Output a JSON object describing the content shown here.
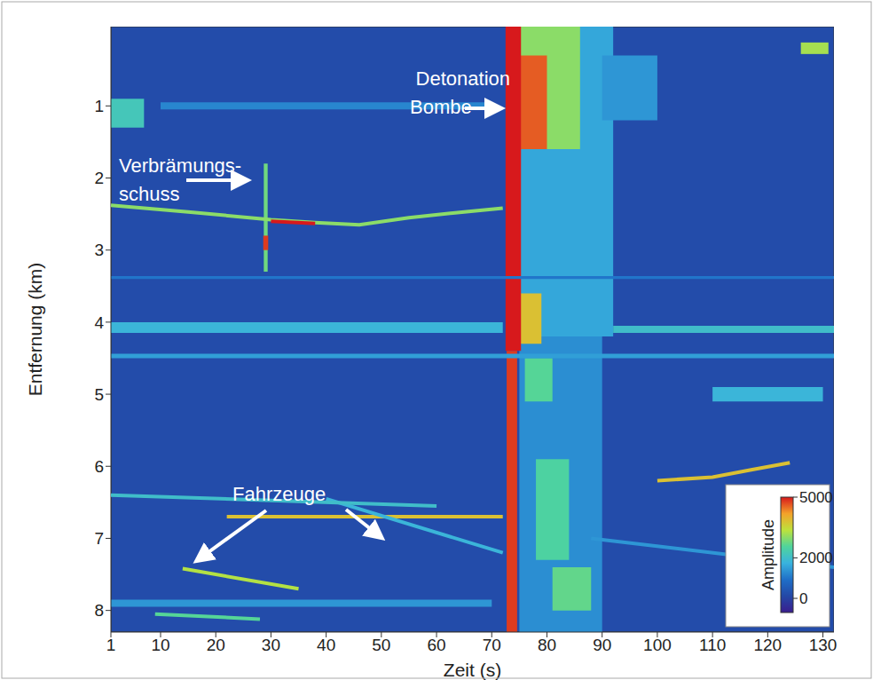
{
  "chart_data": {
    "type": "heatmap",
    "xlabel": "Zeit (s)",
    "ylabel": "Entfernung (km)",
    "xlim": [
      1,
      132
    ],
    "xticks": [
      1,
      10,
      20,
      30,
      40,
      50,
      60,
      70,
      80,
      90,
      100,
      110,
      120,
      130
    ],
    "ylim": [
      -0.1,
      8.3
    ],
    "yticks": [
      1,
      2,
      3,
      4,
      5,
      6,
      7,
      8
    ],
    "y_reversed": true,
    "background": 200,
    "colorbar": {
      "label": "Amplitude",
      "range": [
        -700,
        5000
      ],
      "ticks": [
        0,
        2000,
        5000
      ],
      "colors": [
        "#3a1d8e",
        "#2448a6",
        "#1f6fc8",
        "#39b3de",
        "#4fd49c",
        "#bde23c",
        "#f4a22a",
        "#d7191c"
      ]
    },
    "cells": [
      {
        "x": [
          75,
          92
        ],
        "y": [
          -0.1,
          4.2
        ],
        "value": 1600
      },
      {
        "x": [
          75,
          86
        ],
        "y": [
          -0.1,
          1.6
        ],
        "value": 3000
      },
      {
        "x": [
          75,
          80
        ],
        "y": [
          0.3,
          1.6
        ],
        "value": 4600
      },
      {
        "x": [
          75,
          90
        ],
        "y": [
          4.2,
          8.3
        ],
        "value": 1300
      },
      {
        "x": [
          76,
          81
        ],
        "y": [
          4.5,
          5.1
        ],
        "value": 2600
      },
      {
        "x": [
          78,
          84
        ],
        "y": [
          5.9,
          7.3
        ],
        "value": 2500
      },
      {
        "x": [
          81,
          88
        ],
        "y": [
          7.4,
          8.0
        ],
        "value": 2700
      },
      {
        "x": [
          75,
          79
        ],
        "y": [
          3.6,
          4.3
        ],
        "value": 3800
      },
      {
        "x": [
          72.5,
          75.3
        ],
        "y": [
          -0.1,
          4.4
        ],
        "value": 5000
      },
      {
        "x": [
          72.7,
          74.6
        ],
        "y": [
          4.4,
          8.3
        ],
        "value": 4800
      },
      {
        "x": [
          90,
          100
        ],
        "y": [
          0.3,
          1.2
        ],
        "value": 1400
      },
      {
        "x": [
          28.7,
          29.4
        ],
        "y": [
          1.8,
          3.3
        ],
        "value": 2800
      },
      {
        "x": [
          28.6,
          29.5
        ],
        "y": [
          2.8,
          3.0
        ],
        "value": 4800
      },
      {
        "x": [
          1,
          7
        ],
        "y": [
          0.9,
          1.3
        ],
        "value": 2200
      },
      {
        "x": [
          10,
          70
        ],
        "y": [
          0.95,
          1.05
        ],
        "value": 1200
      },
      {
        "x": [
          1,
          72
        ],
        "y": [
          4.0,
          4.15
        ],
        "value": 1800
      },
      {
        "x": [
          92,
          132
        ],
        "y": [
          4.05,
          4.15
        ],
        "value": 2000
      },
      {
        "x": [
          110,
          130
        ],
        "y": [
          4.9,
          5.1
        ],
        "value": 1800
      },
      {
        "x": [
          1,
          132
        ],
        "y": [
          4.44,
          4.5
        ],
        "value": 1500
      },
      {
        "x": [
          1,
          70
        ],
        "y": [
          7.85,
          7.95
        ],
        "value": 1400
      },
      {
        "x": [
          1,
          132
        ],
        "y": [
          3.36,
          3.4
        ],
        "value": 1000
      },
      {
        "x": [
          126,
          131
        ],
        "y": [
          0.12,
          0.28
        ],
        "value": 3200
      }
    ],
    "tracks": [
      {
        "x": [
          1,
          15,
          30,
          38,
          46,
          55,
          65,
          72
        ],
        "y": [
          2.38,
          2.47,
          2.58,
          2.62,
          2.65,
          2.55,
          2.47,
          2.42
        ],
        "value": 3000
      },
      {
        "x": [
          30,
          38
        ],
        "y": [
          2.6,
          2.63
        ],
        "value": 5000
      },
      {
        "x": [
          22,
          72
        ],
        "y": [
          6.7,
          6.7
        ],
        "value": 3800
      },
      {
        "x": [
          100,
          110,
          117,
          124
        ],
        "y": [
          6.2,
          6.15,
          6.05,
          5.95
        ],
        "value": 3800
      },
      {
        "x": [
          14,
          35
        ],
        "y": [
          7.42,
          7.7
        ],
        "value": 3300
      },
      {
        "x": [
          9,
          28
        ],
        "y": [
          8.05,
          8.12
        ],
        "value": 2600
      },
      {
        "x": [
          40,
          72
        ],
        "y": [
          6.45,
          7.2
        ],
        "value": 1800
      },
      {
        "x": [
          1,
          60
        ],
        "y": [
          6.4,
          6.55
        ],
        "value": 2000
      },
      {
        "x": [
          88,
          132
        ],
        "y": [
          7.0,
          7.4
        ],
        "value": 1400
      }
    ],
    "annotations": [
      {
        "lines": [
          "Detonation",
          "Bombe"
        ]
      },
      {
        "lines": [
          "Verbrämungs-",
          "schuss"
        ]
      },
      {
        "lines": [
          "Fahrzeuge"
        ]
      }
    ]
  }
}
